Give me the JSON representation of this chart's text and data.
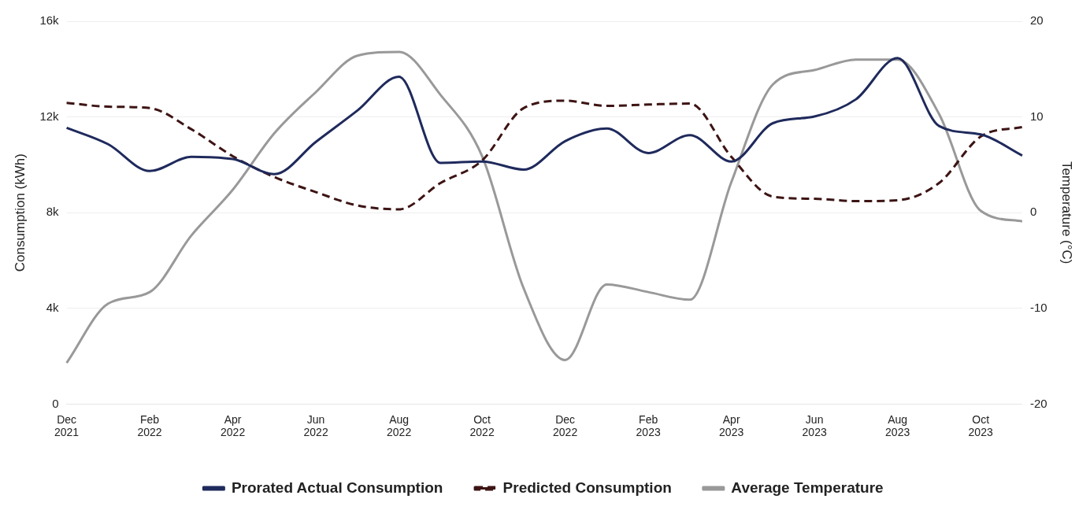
{
  "chart_data": {
    "type": "line",
    "ylabel": "Consumption (kWh)",
    "y2label": "Temperature (°C)",
    "categories": [
      "Dec 2021",
      null,
      "Feb 2022",
      null,
      "Apr 2022",
      null,
      "Jun 2022",
      null,
      "Aug 2022",
      null,
      "Oct 2022",
      null,
      "Dec 2022",
      null,
      "Feb 2023",
      null,
      "Apr 2023",
      null,
      "Jun 2023",
      null,
      "Aug 2023",
      null,
      "Oct 2023",
      null
    ],
    "series": [
      {
        "name": "Prorated Actual Consumption",
        "color": "#1f2a5c",
        "line_style": "solid",
        "values": [
          11550,
          10860,
          9740,
          10330,
          10240,
          9610,
          10960,
          12270,
          13680,
          10080,
          10140,
          9800,
          10990,
          11520,
          10490,
          11240,
          10140,
          11740,
          12020,
          12740,
          14460,
          11620,
          11270,
          10390
        ]
      },
      {
        "name": "Predicted Consumption",
        "color": "#3d1414",
        "line_style": "dashed",
        "values": [
          12590,
          12430,
          12370,
          11490,
          10360,
          9490,
          8860,
          8300,
          8140,
          9240,
          10180,
          12370,
          12680,
          12460,
          12520,
          12560,
          10330,
          8670,
          8580,
          8480,
          8520,
          9240,
          11180,
          11580
        ]
      },
      {
        "name": "Average Temperature",
        "color": "#999999",
        "line_style": "solid",
        "axis": "y2",
        "values": [
          -15.7,
          -9.5,
          -8.3,
          -2.4,
          2.4,
          8.3,
          12.6,
          16.4,
          16.8,
          12.3,
          5.9,
          -7.9,
          -15.4,
          -7.5,
          -8.3,
          -9.1,
          3.2,
          13.4,
          14.9,
          16.0,
          16.0,
          10.3,
          0.2,
          -0.9
        ]
      }
    ],
    "ylim": [
      0,
      16000
    ],
    "yticks": [
      0,
      {
        "value": 4000,
        "label": "4k"
      },
      {
        "value": 8000,
        "label": "8k"
      },
      {
        "value": 12000,
        "label": "12k"
      },
      {
        "value": 16000,
        "label": "16k"
      }
    ],
    "y2lim": [
      -20,
      20
    ],
    "y2ticks": [
      -20,
      -10,
      0,
      10,
      20
    ],
    "grid": "y",
    "legend": "bottom",
    "marker": "none"
  }
}
